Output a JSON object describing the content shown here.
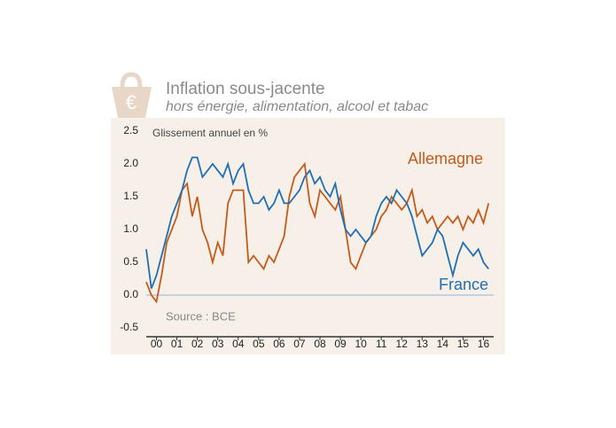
{
  "chart_data": {
    "type": "line",
    "title": "Inflation sous-jacente",
    "subtitle": "hors énergie, alimentation, alcool et tabac",
    "icon_label": "€",
    "y_label": "Glissement annuel en %",
    "source": "Source : BCE",
    "x": [
      2000,
      2000.25,
      2000.5,
      2000.75,
      2001,
      2001.25,
      2001.5,
      2001.75,
      2002,
      2002.25,
      2002.5,
      2002.75,
      2003,
      2003.25,
      2003.5,
      2003.75,
      2004,
      2004.25,
      2004.5,
      2004.75,
      2005,
      2005.25,
      2005.5,
      2005.75,
      2006,
      2006.25,
      2006.5,
      2006.75,
      2007,
      2007.25,
      2007.5,
      2007.75,
      2008,
      2008.25,
      2008.5,
      2008.75,
      2009,
      2009.25,
      2009.5,
      2009.75,
      2010,
      2010.25,
      2010.5,
      2010.75,
      2011,
      2011.25,
      2011.5,
      2011.75,
      2012,
      2012.25,
      2012.5,
      2012.75,
      2013,
      2013.25,
      2013.5,
      2013.75,
      2014,
      2014.25,
      2014.5,
      2014.75,
      2015,
      2015.25,
      2015.5,
      2015.75,
      2016,
      2016.25,
      2016.5,
      2016.75
    ],
    "series": [
      {
        "name": "Allemagne",
        "color": "#c55a1a",
        "values": [
          0.2,
          0.0,
          -0.1,
          0.3,
          0.8,
          1.0,
          1.2,
          1.6,
          1.7,
          1.2,
          1.5,
          1.0,
          0.8,
          0.5,
          0.8,
          0.6,
          1.4,
          1.6,
          1.6,
          1.6,
          0.5,
          0.6,
          0.5,
          0.4,
          0.6,
          0.5,
          0.7,
          0.9,
          1.5,
          1.8,
          1.9,
          2.0,
          1.4,
          1.2,
          1.6,
          1.5,
          1.4,
          1.3,
          1.5,
          1.0,
          0.5,
          0.4,
          0.6,
          0.8,
          0.9,
          1.0,
          1.2,
          1.3,
          1.5,
          1.4,
          1.3,
          1.4,
          1.6,
          1.2,
          1.3,
          1.1,
          1.2,
          1.0,
          1.1,
          1.2,
          1.1,
          1.2,
          1.0,
          1.2,
          1.1,
          1.3,
          1.1,
          1.4
        ]
      },
      {
        "name": "France",
        "color": "#1f6fb5",
        "values": [
          0.7,
          0.1,
          0.3,
          0.6,
          0.9,
          1.2,
          1.4,
          1.6,
          1.9,
          2.1,
          2.1,
          1.8,
          1.9,
          2.0,
          1.9,
          1.8,
          2.0,
          1.7,
          1.9,
          2.0,
          1.6,
          1.4,
          1.4,
          1.5,
          1.3,
          1.4,
          1.6,
          1.4,
          1.4,
          1.5,
          1.6,
          1.8,
          1.9,
          1.7,
          1.8,
          1.6,
          1.5,
          1.7,
          1.3,
          1.0,
          0.9,
          1.0,
          0.9,
          0.8,
          0.9,
          1.2,
          1.4,
          1.5,
          1.4,
          1.6,
          1.5,
          1.4,
          1.2,
          0.9,
          0.6,
          0.7,
          0.8,
          1.0,
          0.9,
          0.6,
          0.3,
          0.6,
          0.8,
          0.7,
          0.6,
          0.7,
          0.5,
          0.4
        ]
      }
    ],
    "xlim": [
      2000,
      2017
    ],
    "xticks": [
      {
        "value": 2000.5,
        "label": "00"
      },
      {
        "value": 2001.5,
        "label": "01"
      },
      {
        "value": 2002.5,
        "label": "02"
      },
      {
        "value": 2003.5,
        "label": "03"
      },
      {
        "value": 2004.5,
        "label": "04"
      },
      {
        "value": 2005.5,
        "label": "05"
      },
      {
        "value": 2006.5,
        "label": "06"
      },
      {
        "value": 2007.5,
        "label": "07"
      },
      {
        "value": 2008.5,
        "label": "08"
      },
      {
        "value": 2009.5,
        "label": "09"
      },
      {
        "value": 2010.5,
        "label": "10"
      },
      {
        "value": 2011.5,
        "label": "11"
      },
      {
        "value": 2012.5,
        "label": "12"
      },
      {
        "value": 2013.5,
        "label": "13"
      },
      {
        "value": 2014.5,
        "label": "14"
      },
      {
        "value": 2015.5,
        "label": "15"
      },
      {
        "value": 2016.5,
        "label": "16"
      }
    ],
    "ylim": [
      -0.5,
      2.5
    ],
    "yticks": [
      {
        "value": -0.5,
        "label": "-0.5"
      },
      {
        "value": 0,
        "label": "0.0"
      },
      {
        "value": 0.5,
        "label": "0.5"
      },
      {
        "value": 1,
        "label": "1.0"
      },
      {
        "value": 1.5,
        "label": "1.5"
      },
      {
        "value": 2,
        "label": "2.0"
      },
      {
        "value": 2.5,
        "label": "2.5"
      }
    ]
  }
}
